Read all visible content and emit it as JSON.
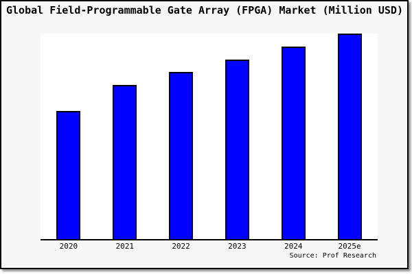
{
  "chart_data": {
    "type": "bar",
    "title": "Global Field-Programmable Gate Array (FPGA) Market (Million USD)",
    "categories": [
      "2020",
      "2021",
      "2022",
      "2023",
      "2024",
      "2025e"
    ],
    "values": [
      62.5,
      75,
      81.25,
      87.5,
      93.75,
      100
    ],
    "values_unit": "percent of tallest bar (chart shows no numeric y-axis labels)",
    "xlabel": "",
    "ylabel": "",
    "ylim": [
      0,
      100
    ],
    "y_axis_labels_shown": false,
    "gridlines": false,
    "legend": "none",
    "source_note": "Source: Prof Research"
  },
  "colors": {
    "bar_fill": "#0000ff",
    "bar_border": "#000000",
    "figure_background": "#f7f7f7",
    "plot_background": "#ffffff",
    "axis_line": "#000000",
    "figure_border": "#000000",
    "text": "#000000"
  }
}
